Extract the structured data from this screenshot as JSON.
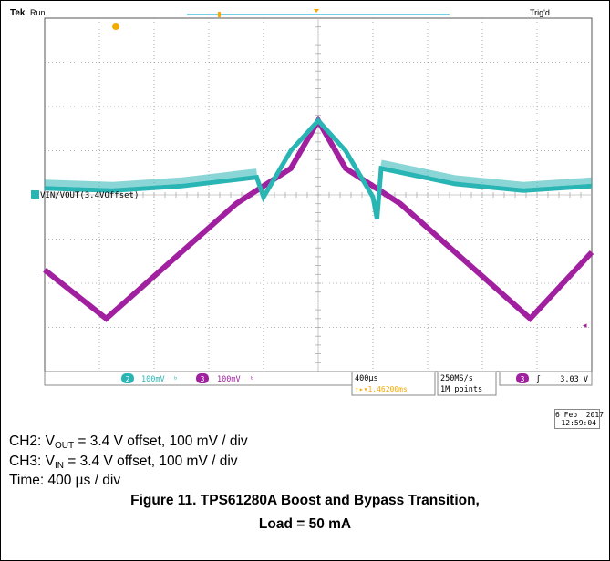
{
  "chart_data": {
    "type": "line",
    "title": "",
    "x_unit": "µs",
    "y_unit": "mV",
    "xlim": [
      -2000,
      2000
    ],
    "ylim": [
      -400,
      400
    ],
    "x_divisions": 10,
    "y_divisions": 8,
    "grid": true,
    "series": [
      {
        "name": "VIN/VOUT(3.4VOffset)",
        "channel": "2",
        "color": "#2ab5b5",
        "points": [
          [
            -2000,
            15
          ],
          [
            -1500,
            10
          ],
          [
            -1000,
            20
          ],
          [
            -450,
            40
          ],
          [
            -400,
            -5
          ],
          [
            -200,
            100
          ],
          [
            0,
            168
          ],
          [
            200,
            100
          ],
          [
            400,
            -5
          ],
          [
            430,
            -55
          ],
          [
            460,
            60
          ],
          [
            1000,
            25
          ],
          [
            1500,
            10
          ],
          [
            2000,
            20
          ]
        ]
      },
      {
        "name": "",
        "channel": "3",
        "color": "#a020a0",
        "points": [
          [
            -2000,
            -170
          ],
          [
            -1550,
            -280
          ],
          [
            -600,
            -20
          ],
          [
            -200,
            60
          ],
          [
            0,
            168
          ],
          [
            200,
            60
          ],
          [
            600,
            -20
          ],
          [
            1550,
            -280
          ],
          [
            2000,
            -130
          ]
        ]
      }
    ]
  },
  "scope": {
    "brand": "Tek",
    "run_state": "Run",
    "trigger_state": "Trig'd",
    "ch2_marker": "2",
    "ch2_scale": "100mV",
    "ch3_marker": "3",
    "ch3_scale": "100mV",
    "timebase": "400µs",
    "trigger_pos": "↑▸▾1.46200ms",
    "sample_rate": "250MS/s",
    "record_length": "1M points",
    "trig_channel": "3",
    "trig_symbol": "ʃ",
    "trig_level": "3.03 V",
    "date": "6 Feb  2017",
    "time": "12:59:04",
    "ch3_ground_marker": "◂"
  },
  "caption": {
    "line1_pre": "CH2: V",
    "line1_sub": "OUT",
    "line1_post": " = 3.4 V offset, 100 mV / div",
    "line2_pre": "CH3: V",
    "line2_sub": "IN",
    "line2_post": " = 3.4 V offset, 100 mV / div",
    "line3": "Time: 400 µs / div",
    "figure_title_1": "Figure 11. TPS61280A Boost and Bypass Transition,",
    "figure_title_2": "Load = 50 mA"
  }
}
